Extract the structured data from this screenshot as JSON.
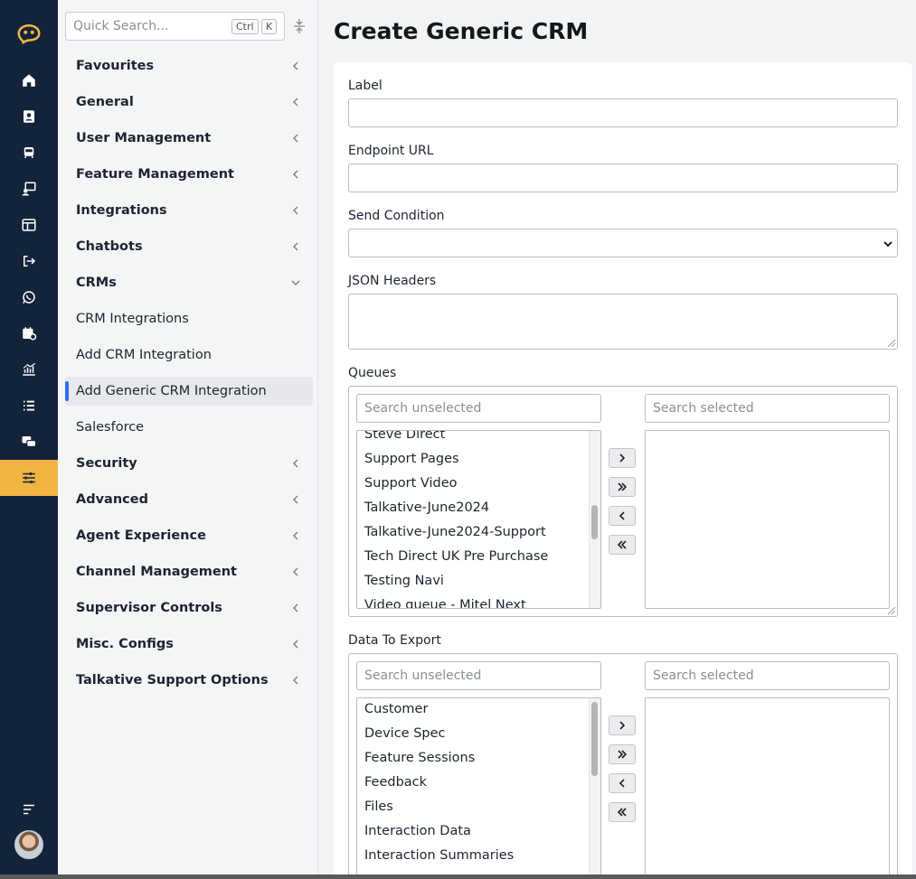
{
  "search": {
    "placeholder": "Quick Search...",
    "kbd1": "Ctrl",
    "kbd2": "K"
  },
  "nav": [
    {
      "label": "Favourites",
      "type": "group",
      "expanded": false
    },
    {
      "label": "General",
      "type": "group",
      "expanded": false
    },
    {
      "label": "User Management",
      "type": "group",
      "expanded": false
    },
    {
      "label": "Feature Management",
      "type": "group",
      "expanded": false
    },
    {
      "label": "Integrations",
      "type": "group",
      "expanded": false
    },
    {
      "label": "Chatbots",
      "type": "group",
      "expanded": false
    },
    {
      "label": "CRMs",
      "type": "group",
      "expanded": true
    },
    {
      "label": "CRM Integrations",
      "type": "link"
    },
    {
      "label": "Add CRM Integration",
      "type": "link"
    },
    {
      "label": "Add Generic CRM Integration",
      "type": "link",
      "active": true
    },
    {
      "label": "Salesforce",
      "type": "link"
    },
    {
      "label": "Security",
      "type": "group",
      "expanded": false
    },
    {
      "label": "Advanced",
      "type": "group",
      "expanded": false
    },
    {
      "label": "Agent Experience",
      "type": "group",
      "expanded": false
    },
    {
      "label": "Channel Management",
      "type": "group",
      "expanded": false
    },
    {
      "label": "Supervisor Controls",
      "type": "group",
      "expanded": false
    },
    {
      "label": "Misc. Configs",
      "type": "group",
      "expanded": false
    },
    {
      "label": "Talkative Support Options",
      "type": "group",
      "expanded": false
    }
  ],
  "rail_icons": [
    "logo-icon",
    "home-icon",
    "contacts-icon",
    "chat-bus-icon",
    "agent-screen-icon",
    "dashboard-icon",
    "logout-icon",
    "whatsapp-icon",
    "calendar-icon",
    "analytics-icon",
    "list-icon",
    "messages-icon",
    "settings-sliders-icon"
  ],
  "colors": {
    "rail": "#132339",
    "accent": "#f2b544",
    "active_bar": "#2f6fed"
  },
  "page": {
    "title": "Create Generic CRM"
  },
  "form": {
    "label": {
      "label": "Label",
      "value": ""
    },
    "endpoint": {
      "label": "Endpoint URL",
      "value": ""
    },
    "send_condition": {
      "label": "Send Condition",
      "value": ""
    },
    "json_headers": {
      "label": "JSON Headers",
      "value": ""
    },
    "queues": {
      "label": "Queues",
      "search_unselected": "Search unselected",
      "search_selected": "Search selected",
      "options": [
        "Steve Direct",
        "Support Pages",
        "Support Video",
        "Talkative-June2024",
        "Talkative-June2024-Support",
        "Tech Direct UK Pre Purchase",
        "Testing Navi",
        "Video queue - Mitel Next"
      ],
      "selected": []
    },
    "data_to_export": {
      "label": "Data To Export",
      "search_unselected": "Search unselected",
      "search_selected": "Search selected",
      "options": [
        "Customer",
        "Device Spec",
        "Feature Sessions",
        "Feedback",
        "Files",
        "Interaction Data",
        "Interaction Summaries"
      ],
      "selected": []
    }
  }
}
